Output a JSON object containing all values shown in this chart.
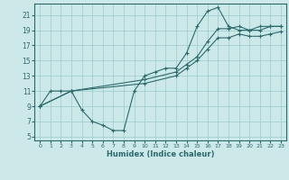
{
  "xlabel": "Humidex (Indice chaleur)",
  "xlim": [
    -0.5,
    23.5
  ],
  "ylim": [
    4.5,
    22.5
  ],
  "xticks": [
    0,
    1,
    2,
    3,
    4,
    5,
    6,
    7,
    8,
    9,
    10,
    11,
    12,
    13,
    14,
    15,
    16,
    17,
    18,
    19,
    20,
    21,
    22,
    23
  ],
  "yticks": [
    5,
    7,
    9,
    11,
    13,
    15,
    17,
    19,
    21
  ],
  "bg_color": "#cce8e8",
  "grid_color": "#99cccc",
  "line_color": "#2a6b6b",
  "line1_x": [
    0,
    1,
    2,
    3,
    4,
    5,
    6,
    7,
    8,
    9,
    10,
    11,
    12,
    13,
    14,
    15,
    16,
    17,
    18,
    19,
    20,
    21,
    22,
    23
  ],
  "line1_y": [
    9,
    11,
    11,
    11,
    8.5,
    7.0,
    6.5,
    5.8,
    5.8,
    11,
    13,
    13.5,
    14,
    14,
    16,
    19.5,
    21.5,
    22,
    19.5,
    19.0,
    19,
    19.5,
    19.5,
    19.5
  ],
  "line2_x": [
    0,
    3,
    10,
    13,
    14,
    15,
    16,
    17,
    18,
    19,
    20,
    21,
    22,
    23
  ],
  "line2_y": [
    9,
    11,
    12.5,
    13.5,
    14.5,
    15.5,
    17.5,
    19.2,
    19.2,
    19.5,
    19.0,
    19.0,
    19.5,
    19.5
  ],
  "line3_x": [
    0,
    3,
    10,
    13,
    14,
    15,
    16,
    17,
    18,
    19,
    20,
    21,
    22,
    23
  ],
  "line3_y": [
    9,
    11,
    12.0,
    13.0,
    14.0,
    15.0,
    16.5,
    18.0,
    18.0,
    18.5,
    18.2,
    18.2,
    18.5,
    18.8
  ]
}
